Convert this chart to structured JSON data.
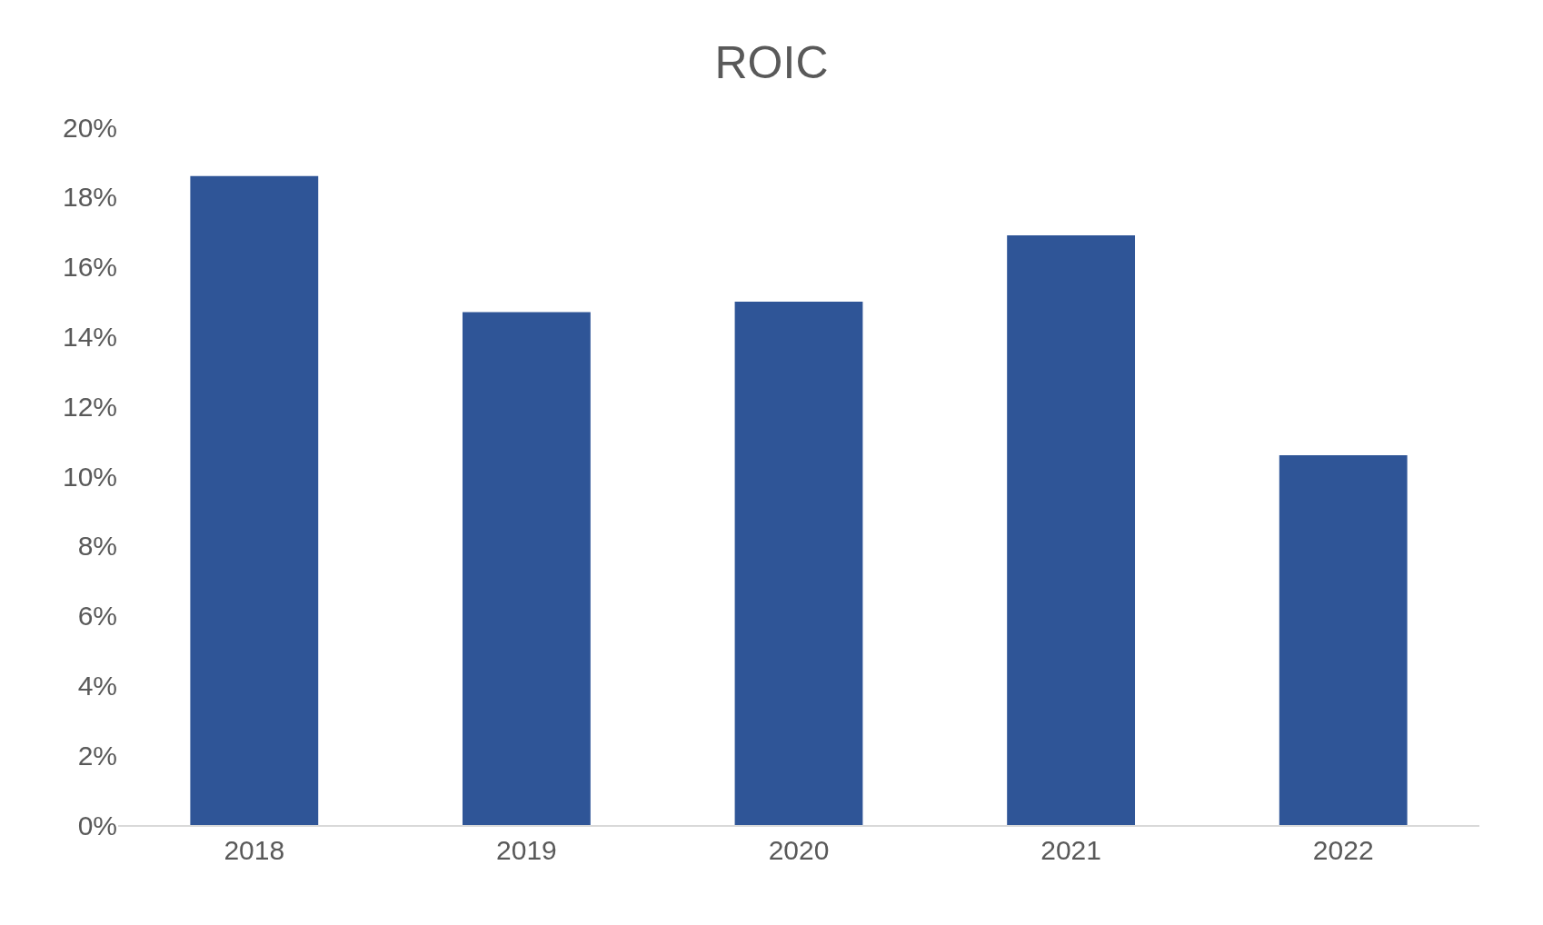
{
  "chart_data": {
    "type": "bar",
    "title": "ROIC",
    "categories": [
      "2018",
      "2019",
      "2020",
      "2021",
      "2022"
    ],
    "values": [
      18.6,
      14.7,
      15.0,
      16.9,
      10.6
    ],
    "color": "#2f5597",
    "ylim": [
      0,
      20
    ],
    "yticks": [
      {
        "value": 0,
        "label": "0%"
      },
      {
        "value": 2,
        "label": "2%"
      },
      {
        "value": 4,
        "label": "4%"
      },
      {
        "value": 6,
        "label": "6%"
      },
      {
        "value": 8,
        "label": "8%"
      },
      {
        "value": 10,
        "label": "10%"
      },
      {
        "value": 12,
        "label": "12%"
      },
      {
        "value": 14,
        "label": "14%"
      },
      {
        "value": 16,
        "label": "16%"
      },
      {
        "value": 18,
        "label": "18%"
      },
      {
        "value": 20,
        "label": "20%"
      }
    ],
    "grid": false,
    "legend": false
  }
}
